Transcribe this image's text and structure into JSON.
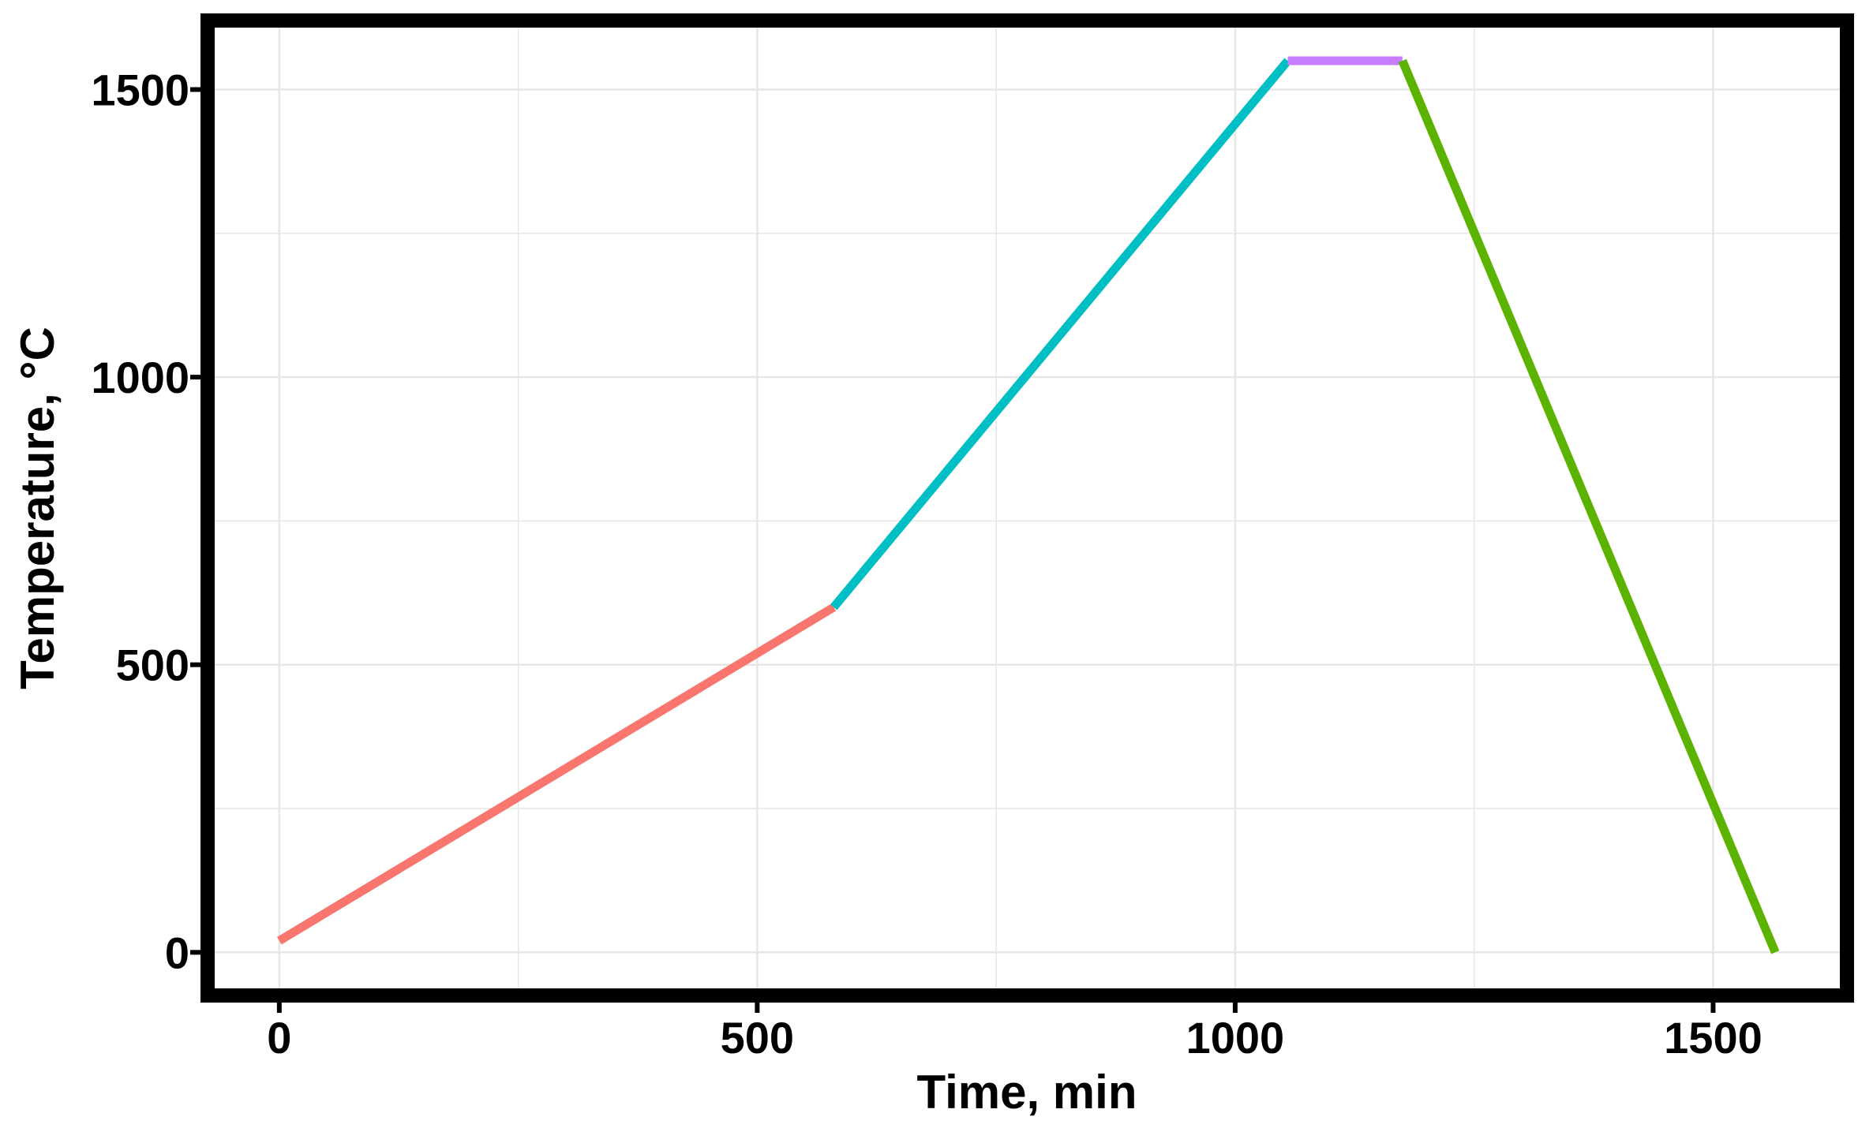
{
  "chart_data": {
    "type": "line",
    "xlabel": "Time, min",
    "ylabel": "Temperature, °C",
    "xlim": [
      -75,
      1640
    ],
    "ylim": [
      -75,
      1620
    ],
    "xticks": [
      0,
      500,
      1000,
      1500
    ],
    "yticks": [
      0,
      500,
      1000,
      1500
    ],
    "xticks_minor": [
      250,
      750,
      1250
    ],
    "yticks_minor": [
      250,
      750,
      1250
    ],
    "grid": true,
    "legend": "none",
    "series": [
      {
        "color": "#F8766D",
        "x": [
          0,
          580
        ],
        "y": [
          20,
          600
        ]
      },
      {
        "color": "#00BFC4",
        "x": [
          580,
          1055
        ],
        "y": [
          600,
          1550
        ]
      },
      {
        "color": "#C77CFF",
        "x": [
          1055,
          1175
        ],
        "y": [
          1550,
          1550
        ]
      },
      {
        "color": "#5BB300",
        "x": [
          1175,
          1565
        ],
        "y": [
          1550,
          0
        ]
      }
    ]
  },
  "colors": {
    "frame": "#000000",
    "grid": "#E6E6E6",
    "background": "#FFFFFF"
  }
}
